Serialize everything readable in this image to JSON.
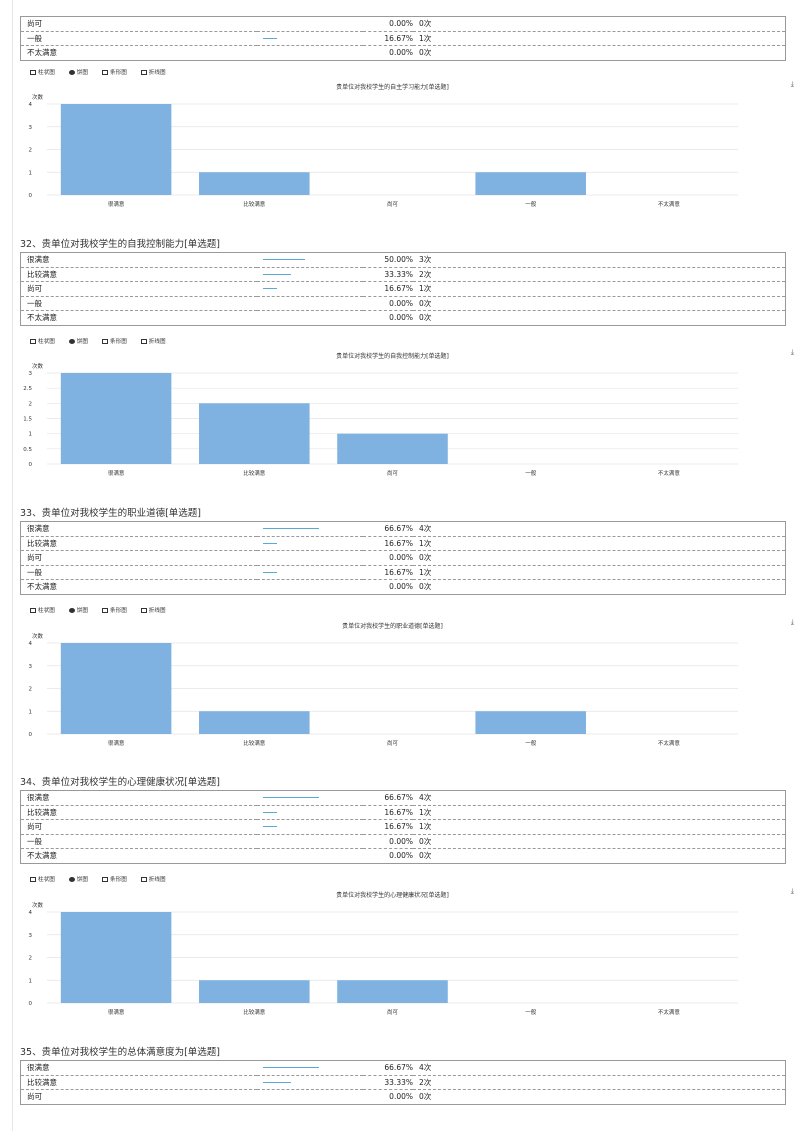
{
  "toolbar": {
    "bar_label": "柱状图",
    "pie_label": "饼图",
    "hbar_label": "条形图",
    "line_label": "折线图",
    "download_icon": "download-icon"
  },
  "q31_tail": {
    "options": [
      {
        "label": "尚可",
        "percent": "0.00%",
        "count": "0次",
        "fraction": 0.0
      },
      {
        "label": "一般",
        "percent": "16.67%",
        "count": "1次",
        "fraction": 0.1667
      },
      {
        "label": "不太满意",
        "percent": "0.00%",
        "count": "0次",
        "fraction": 0.0
      }
    ]
  },
  "q32": {
    "title": "32、贵单位对我校学生的自我控制能力[单选题]",
    "options": [
      {
        "label": "很满意",
        "percent": "50.00%",
        "count": "3次",
        "fraction": 0.5
      },
      {
        "label": "比较满意",
        "percent": "33.33%",
        "count": "2次",
        "fraction": 0.3333
      },
      {
        "label": "尚可",
        "percent": "16.67%",
        "count": "1次",
        "fraction": 0.1667
      },
      {
        "label": "一般",
        "percent": "0.00%",
        "count": "0次",
        "fraction": 0.0
      },
      {
        "label": "不太满意",
        "percent": "0.00%",
        "count": "0次",
        "fraction": 0.0
      }
    ]
  },
  "q33": {
    "title": "33、贵单位对我校学生的职业道德[单选题]",
    "options": [
      {
        "label": "很满意",
        "percent": "66.67%",
        "count": "4次",
        "fraction": 0.6667
      },
      {
        "label": "比较满意",
        "percent": "16.67%",
        "count": "1次",
        "fraction": 0.1667
      },
      {
        "label": "尚可",
        "percent": "0.00%",
        "count": "0次",
        "fraction": 0.0
      },
      {
        "label": "一般",
        "percent": "16.67%",
        "count": "1次",
        "fraction": 0.1667
      },
      {
        "label": "不太满意",
        "percent": "0.00%",
        "count": "0次",
        "fraction": 0.0
      }
    ]
  },
  "q34": {
    "title": "34、贵单位对我校学生的心理健康状况[单选题]",
    "options": [
      {
        "label": "很满意",
        "percent": "66.67%",
        "count": "4次",
        "fraction": 0.6667
      },
      {
        "label": "比较满意",
        "percent": "16.67%",
        "count": "1次",
        "fraction": 0.1667
      },
      {
        "label": "尚可",
        "percent": "16.67%",
        "count": "1次",
        "fraction": 0.1667
      },
      {
        "label": "一般",
        "percent": "0.00%",
        "count": "0次",
        "fraction": 0.0
      },
      {
        "label": "不太满意",
        "percent": "0.00%",
        "count": "0次",
        "fraction": 0.0
      }
    ]
  },
  "q35": {
    "title": "35、贵单位对我校学生的总体满意度为[单选题]",
    "options": [
      {
        "label": "很满意",
        "percent": "66.67%",
        "count": "4次",
        "fraction": 0.6667
      },
      {
        "label": "比较满意",
        "percent": "33.33%",
        "count": "2次",
        "fraction": 0.3333
      },
      {
        "label": "尚可",
        "percent": "0.00%",
        "count": "0次",
        "fraction": 0.0
      }
    ]
  },
  "colors": {
    "bar": "#7fb2e1",
    "mini_bar": "#5aa9d6"
  },
  "chart_data": [
    {
      "type": "bar",
      "title": "贵单位对我校学生的自主学习能力[单选题]",
      "ylabel": "次数",
      "categories": [
        "很满意",
        "比较满意",
        "尚可",
        "一般",
        "不太满意"
      ],
      "values": [
        4,
        1,
        0,
        1,
        0
      ],
      "ylim": [
        0,
        4
      ],
      "yticks": [
        "0",
        "1",
        "2",
        "3",
        "4"
      ],
      "grid": true
    },
    {
      "type": "bar",
      "title": "贵单位对我校学生的自我控制能力[单选题]",
      "ylabel": "次数",
      "categories": [
        "很满意",
        "比较满意",
        "尚可",
        "一般",
        "不太满意"
      ],
      "values": [
        3,
        2,
        1,
        0,
        0
      ],
      "ylim": [
        0,
        3
      ],
      "yticks": [
        "0",
        "0.5",
        "1",
        "1.5",
        "2",
        "2.5",
        "3"
      ],
      "grid": true
    },
    {
      "type": "bar",
      "title": "贵单位对我校学生的职业道德[单选题]",
      "ylabel": "次数",
      "categories": [
        "很满意",
        "比较满意",
        "尚可",
        "一般",
        "不太满意"
      ],
      "values": [
        4,
        1,
        0,
        1,
        0
      ],
      "ylim": [
        0,
        4
      ],
      "yticks": [
        "0",
        "1",
        "2",
        "3",
        "4"
      ],
      "grid": true
    },
    {
      "type": "bar",
      "title": "贵单位对我校学生的心理健康状况[单选题]",
      "ylabel": "次数",
      "categories": [
        "很满意",
        "比较满意",
        "尚可",
        "一般",
        "不太满意"
      ],
      "values": [
        4,
        1,
        1,
        0,
        0
      ],
      "ylim": [
        0,
        4
      ],
      "yticks": [
        "0",
        "1",
        "2",
        "3",
        "4"
      ],
      "grid": true
    }
  ]
}
